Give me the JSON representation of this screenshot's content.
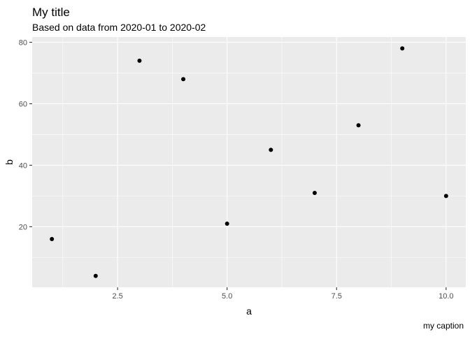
{
  "chart_data": {
    "type": "scatter",
    "title": "My title",
    "subtitle": "Based on data from 2020-01 to 2020-02",
    "caption": "my caption",
    "xlabel": "a",
    "ylabel": "b",
    "x": [
      1,
      2,
      3,
      4,
      5,
      6,
      7,
      8,
      9,
      10
    ],
    "y": [
      16,
      4,
      74,
      68,
      21,
      45,
      31,
      53,
      78,
      30
    ],
    "xlim": [
      0.55,
      10.45
    ],
    "ylim": [
      0.3,
      81.7
    ],
    "x_ticks": [
      2.5,
      5.0,
      7.5,
      10.0
    ],
    "x_tick_labels": [
      "2.5",
      "5.0",
      "7.5",
      "10.0"
    ],
    "x_minor_ticks": [
      1.25,
      3.75,
      6.25,
      8.75
    ],
    "y_ticks": [
      20,
      40,
      60,
      80
    ],
    "y_tick_labels": [
      "20",
      "40",
      "60",
      "80"
    ],
    "y_minor_ticks": [
      10,
      30,
      50,
      70
    ],
    "grid": true,
    "legend": "none",
    "colors": {
      "panel_background": "#EBEBEB",
      "grid_line": "#FFFFFF",
      "point": "#000000",
      "tick_label": "#4D4D4D",
      "text": "#000000"
    }
  }
}
